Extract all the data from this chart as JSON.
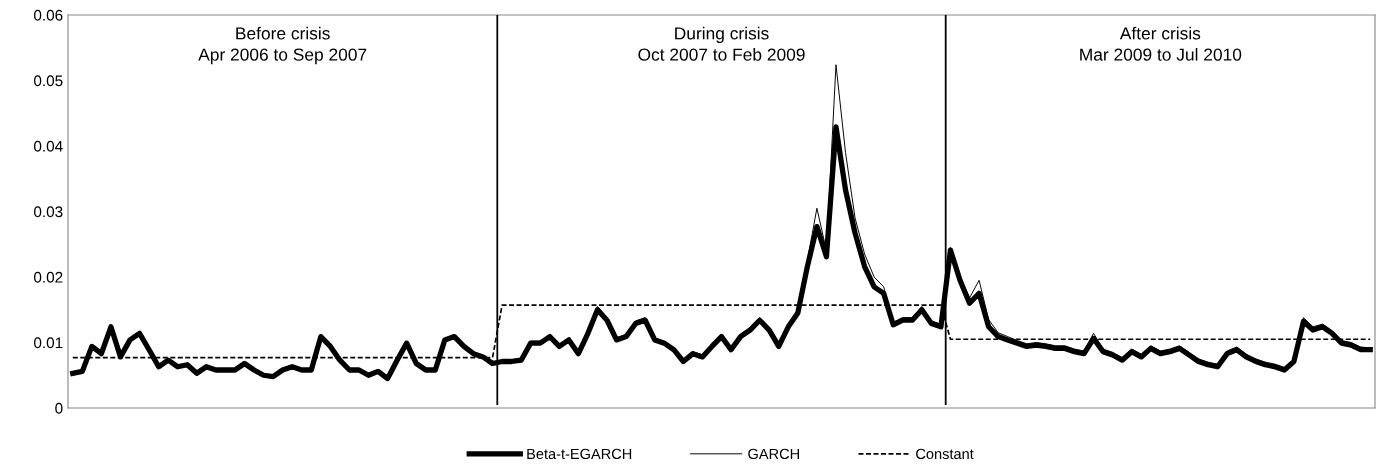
{
  "chart_data": {
    "type": "line",
    "categories": [
      null,
      null,
      null,
      null,
      null,
      null,
      null,
      null,
      null,
      null,
      null,
      null,
      null,
      null,
      null,
      null,
      null,
      null,
      null,
      null,
      null,
      null,
      null,
      null,
      null,
      null,
      null,
      null,
      null,
      null,
      null,
      null,
      null,
      null,
      null,
      null,
      null,
      null,
      null,
      null,
      null,
      null,
      null,
      null,
      null,
      null,
      null,
      null,
      null,
      null,
      null,
      null,
      null,
      null,
      null,
      null,
      null,
      null,
      null,
      null,
      null,
      null,
      null,
      null,
      null,
      null,
      null,
      null,
      null,
      null,
      null,
      null,
      null,
      null,
      null,
      null,
      null,
      null,
      null,
      null,
      null,
      null,
      null,
      null,
      null,
      null,
      null,
      null,
      null,
      null,
      null,
      null,
      null,
      null,
      null,
      null,
      null,
      null,
      null,
      null,
      null,
      null,
      null,
      null,
      null,
      null,
      null,
      null,
      null,
      null,
      null,
      null,
      null,
      null,
      null,
      null,
      null,
      null,
      null,
      null,
      null,
      null,
      null,
      null,
      null,
      null,
      null,
      null,
      null,
      null,
      null,
      null,
      null,
      null,
      null,
      null,
      null
    ],
    "series": [
      {
        "name": "Beta-t-EGARCH",
        "color": "#000000",
        "line_style": "solid",
        "values": [
          0.0053,
          0.0056,
          0.0094,
          0.0083,
          0.0124,
          0.0078,
          0.0104,
          0.0114,
          0.0089,
          0.0063,
          0.0073,
          0.0063,
          0.0066,
          0.0053,
          0.0063,
          0.0058,
          0.0058,
          0.0058,
          0.0068,
          0.0058,
          0.005,
          0.0048,
          0.0058,
          0.0063,
          0.0058,
          0.0058,
          0.0109,
          0.0094,
          0.0073,
          0.0058,
          0.0058,
          0.005,
          0.0056,
          0.0045,
          0.0073,
          0.0099,
          0.0068,
          0.0058,
          0.0058,
          0.0104,
          0.0109,
          0.0094,
          0.0083,
          0.0078,
          0.0068,
          0.0071,
          0.0071,
          0.0073,
          0.0099,
          0.0099,
          0.0109,
          0.0094,
          0.0104,
          0.0083,
          0.0114,
          0.015,
          0.0134,
          0.0104,
          0.0109,
          0.0129,
          0.0134,
          0.0104,
          0.0099,
          0.0089,
          0.0071,
          0.0083,
          0.0078,
          0.0094,
          0.0109,
          0.0089,
          0.0109,
          0.0119,
          0.0134,
          0.0119,
          0.0094,
          0.0124,
          0.0145,
          0.0216,
          0.0277,
          0.0231,
          0.0429,
          0.0333,
          0.0267,
          0.0216,
          0.0185,
          0.0175,
          0.0127,
          0.0134,
          0.0134,
          0.015,
          0.0129,
          0.0124,
          0.0241,
          0.0195,
          0.016,
          0.0175,
          0.0124,
          0.0109,
          0.0104,
          0.0099,
          0.0094,
          0.0096,
          0.0094,
          0.0091,
          0.0091,
          0.0086,
          0.0083,
          0.0106,
          0.0086,
          0.0081,
          0.0073,
          0.0086,
          0.0078,
          0.0091,
          0.0083,
          0.0086,
          0.0091,
          0.0081,
          0.0071,
          0.0066,
          0.0063,
          0.0083,
          0.0089,
          0.0078,
          0.0071,
          0.0066,
          0.0063,
          0.0058,
          0.0071,
          0.0132,
          0.0119,
          0.0124,
          0.0114,
          0.0099,
          0.0096,
          0.0089,
          0.0089
        ]
      },
      {
        "name": "GARCH",
        "color": "#000000",
        "line_style": "solid",
        "values": [
          0.0054,
          0.0057,
          0.0095,
          0.0084,
          0.0126,
          0.0079,
          0.0105,
          0.0116,
          0.009,
          0.0064,
          0.0074,
          0.0064,
          0.0067,
          0.0054,
          0.0064,
          0.0059,
          0.0059,
          0.0059,
          0.0069,
          0.0059,
          0.0051,
          0.0049,
          0.0059,
          0.0064,
          0.0059,
          0.0059,
          0.0111,
          0.0095,
          0.0074,
          0.0059,
          0.0059,
          0.0051,
          0.0057,
          0.0046,
          0.0074,
          0.0101,
          0.0069,
          0.0059,
          0.0059,
          0.0106,
          0.0111,
          0.0095,
          0.0084,
          0.0079,
          0.0069,
          0.0073,
          0.0074,
          0.0076,
          0.0102,
          0.0102,
          0.0112,
          0.0097,
          0.0107,
          0.0086,
          0.0117,
          0.0155,
          0.0138,
          0.0107,
          0.0112,
          0.0133,
          0.0138,
          0.0107,
          0.0102,
          0.0092,
          0.0074,
          0.0086,
          0.0081,
          0.0097,
          0.0113,
          0.0092,
          0.0113,
          0.0123,
          0.0138,
          0.0123,
          0.0097,
          0.0128,
          0.015,
          0.0225,
          0.0305,
          0.024,
          0.0524,
          0.039,
          0.029,
          0.0235,
          0.02,
          0.0185,
          0.0131,
          0.0138,
          0.0138,
          0.0155,
          0.0133,
          0.0128,
          0.0245,
          0.02,
          0.0168,
          0.0195,
          0.0135,
          0.0115,
          0.0109,
          0.0103,
          0.0098,
          0.01,
          0.0098,
          0.0095,
          0.0095,
          0.009,
          0.0087,
          0.0114,
          0.009,
          0.0085,
          0.0077,
          0.009,
          0.0082,
          0.0095,
          0.0087,
          0.009,
          0.0095,
          0.0085,
          0.0075,
          0.007,
          0.0067,
          0.0087,
          0.0093,
          0.0082,
          0.0075,
          0.007,
          0.0067,
          0.0062,
          0.0075,
          0.0138,
          0.0124,
          0.0128,
          0.0118,
          0.0103,
          0.01,
          0.0093,
          0.0092
        ]
      },
      {
        "name": "Constant",
        "color": "#000000",
        "line_style": "dashed",
        "values": [
          0.0077,
          0.0077,
          0.0077,
          0.0077,
          0.0077,
          0.0077,
          0.0077,
          0.0077,
          0.0077,
          0.0077,
          0.0077,
          0.0077,
          0.0077,
          0.0077,
          0.0077,
          0.0077,
          0.0077,
          0.0077,
          0.0077,
          0.0077,
          0.0077,
          0.0077,
          0.0077,
          0.0077,
          0.0077,
          0.0077,
          0.0077,
          0.0077,
          0.0077,
          0.0077,
          0.0077,
          0.0077,
          0.0077,
          0.0077,
          0.0077,
          0.0077,
          0.0077,
          0.0077,
          0.0077,
          0.0077,
          0.0077,
          0.0077,
          0.0077,
          0.0077,
          0.0077,
          0.0157,
          0.0157,
          0.0157,
          0.0157,
          0.0157,
          0.0157,
          0.0157,
          0.0157,
          0.0157,
          0.0157,
          0.0157,
          0.0157,
          0.0157,
          0.0157,
          0.0157,
          0.0157,
          0.0157,
          0.0157,
          0.0157,
          0.0157,
          0.0157,
          0.0157,
          0.0157,
          0.0157,
          0.0157,
          0.0157,
          0.0157,
          0.0157,
          0.0157,
          0.0157,
          0.0157,
          0.0157,
          0.0157,
          0.0157,
          0.0157,
          0.0157,
          0.0157,
          0.0157,
          0.0157,
          0.0157,
          0.0157,
          0.0157,
          0.0157,
          0.0157,
          0.0157,
          0.0157,
          0.0157,
          0.0105,
          0.0105,
          0.0105,
          0.0105,
          0.0105,
          0.0105,
          0.0105,
          0.0105,
          0.0105,
          0.0105,
          0.0105,
          0.0105,
          0.0105,
          0.0105,
          0.0105,
          0.0105,
          0.0105,
          0.0105,
          0.0105,
          0.0105,
          0.0105,
          0.0105,
          0.0105,
          0.0105,
          0.0105,
          0.0105,
          0.0105,
          0.0105,
          0.0105,
          0.0105,
          0.0105,
          0.0105,
          0.0105,
          0.0105,
          0.0105,
          0.0105,
          0.0105,
          0.0105,
          0.0105,
          0.0105,
          0.0105,
          0.0105,
          0.0105,
          0.0105,
          0.0105
        ]
      }
    ],
    "ylim": [
      0,
      0.06
    ],
    "yticks": [
      0,
      0.01,
      0.02,
      0.03,
      0.04,
      0.05,
      0.06
    ],
    "annotations": [
      "Before crisis\nApr 2006 to Sep 2007",
      "During crisis\nOct 2007 to Feb 2009",
      "After crisis\nMar 2009 to Jul 2010"
    ],
    "tick_labels": "y",
    "grid": false,
    "legend": "bottom"
  }
}
